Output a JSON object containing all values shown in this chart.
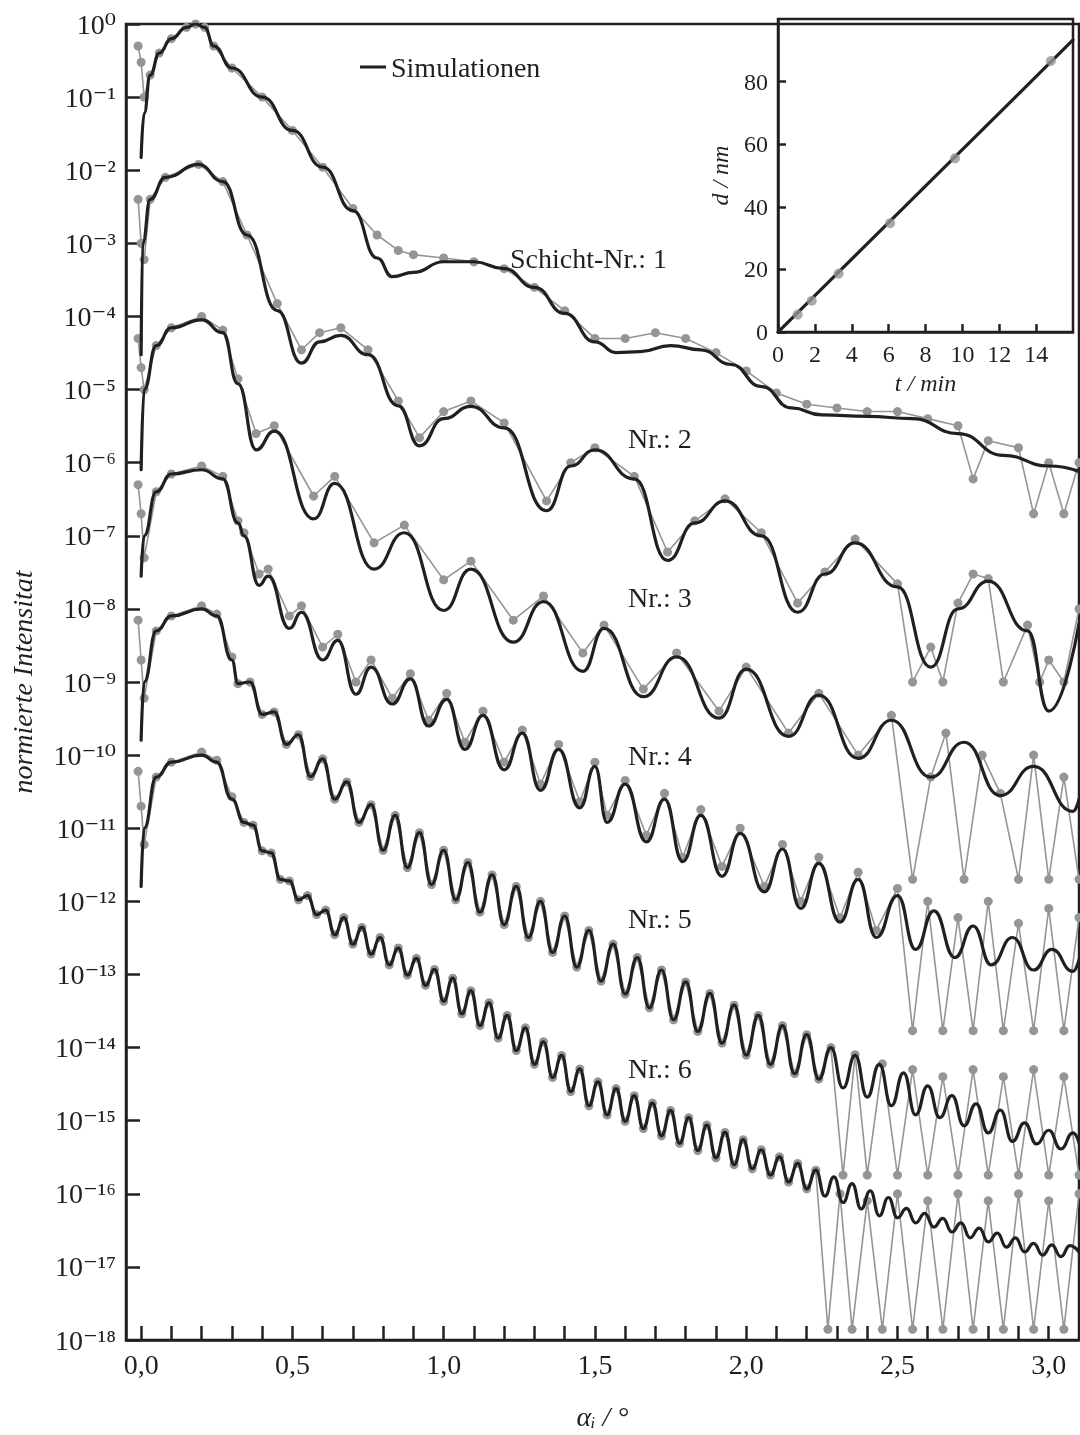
{
  "chart_data": [
    {
      "type": "line",
      "xlabel": "αᵢ / °",
      "ylabel": "normierte Intensitat",
      "log": "y",
      "legend": "top",
      "xlim": [
        -0.05,
        3.1
      ],
      "ylim": [
        1e-18,
        1
      ],
      "xticks": [
        {
          "value": 0,
          "label": "0,0"
        },
        {
          "value": 0.1,
          "label": null
        },
        {
          "value": 0.2,
          "label": null
        },
        {
          "value": 0.3,
          "label": null
        },
        {
          "value": 0.4,
          "label": null
        },
        {
          "value": 0.5,
          "label": "0,5"
        },
        {
          "value": 0.6,
          "label": null
        },
        {
          "value": 0.7,
          "label": null
        },
        {
          "value": 0.8,
          "label": null
        },
        {
          "value": 0.9,
          "label": null
        },
        {
          "value": 1.0,
          "label": "1,0"
        },
        {
          "value": 1.1,
          "label": null
        },
        {
          "value": 1.2,
          "label": null
        },
        {
          "value": 1.3,
          "label": null
        },
        {
          "value": 1.4,
          "label": null
        },
        {
          "value": 1.5,
          "label": "1,5"
        },
        {
          "value": 1.6,
          "label": null
        },
        {
          "value": 1.7,
          "label": null
        },
        {
          "value": 1.8,
          "label": null
        },
        {
          "value": 1.9,
          "label": null
        },
        {
          "value": 2.0,
          "label": "2,0"
        },
        {
          "value": 2.1,
          "label": null
        },
        {
          "value": 2.2,
          "label": null
        },
        {
          "value": 2.3,
          "label": null
        },
        {
          "value": 2.4,
          "label": null
        },
        {
          "value": 2.5,
          "label": "2,5"
        },
        {
          "value": 2.6,
          "label": null
        },
        {
          "value": 2.7,
          "label": null
        },
        {
          "value": 2.8,
          "label": null
        },
        {
          "value": 2.9,
          "label": null
        },
        {
          "value": 3.0,
          "label": "3,0"
        }
      ],
      "yticks": [
        {
          "value": 1,
          "label": "10⁰"
        },
        {
          "value": 0.1,
          "label": "10⁻¹"
        },
        {
          "value": 0.01,
          "label": "10⁻²"
        },
        {
          "value": 0.001,
          "label": "10⁻³"
        },
        {
          "value": 0.0001,
          "label": "10⁻⁴"
        },
        {
          "value": 1e-05,
          "label": "10⁻⁵"
        },
        {
          "value": 1e-06,
          "label": "10⁻⁶"
        },
        {
          "value": 1e-07,
          "label": "10⁻⁷"
        },
        {
          "value": 1e-08,
          "label": "10⁻⁸"
        },
        {
          "value": 1e-09,
          "label": "10⁻⁹"
        },
        {
          "value": 1e-10,
          "label": "10⁻¹⁰"
        },
        {
          "value": 1e-11,
          "label": "10⁻¹¹"
        },
        {
          "value": 1e-12,
          "label": "10⁻¹²"
        },
        {
          "value": 1e-13,
          "label": "10⁻¹³"
        },
        {
          "value": 1e-14,
          "label": "10⁻¹⁴"
        },
        {
          "value": 1e-15,
          "label": "10⁻¹⁵"
        },
        {
          "value": 1e-16,
          "label": "10⁻¹⁶"
        },
        {
          "value": 1e-17,
          "label": "10⁻¹⁷"
        },
        {
          "value": 1e-18,
          "label": "10⁻¹⁸"
        }
      ],
      "annotations": [
        "Schicht-Nr.: 1",
        "Nr.: 2",
        "Nr.: 3",
        "Nr.: 4",
        "Nr.: 5",
        "Nr.: 6"
      ],
      "series": [
        {
          "color": "#939598",
          "marker": "circle",
          "x": [
            -0.01,
            0,
            0.01,
            0.03,
            0.06,
            0.1,
            0.15,
            0.18,
            0.21,
            0.24,
            0.3,
            0.4,
            0.5,
            0.6,
            0.7,
            0.78,
            0.85,
            0.9,
            1.0,
            1.1,
            1.2,
            1.3,
            1.4,
            1.5,
            1.6,
            1.7,
            1.8,
            1.9,
            2.0,
            2.1,
            2.2,
            2.3,
            2.4,
            2.5,
            2.6,
            2.7,
            2.75,
            2.8,
            2.9,
            2.95,
            3.0,
            3.05,
            3.1
          ],
          "values": [
            0.5,
            0.3,
            0.1,
            0.2,
            0.4,
            0.63,
            0.9,
            1,
            0.9,
            0.5,
            0.25,
            0.1,
            0.035,
            0.011,
            0.003,
            0.0013,
            0.0008,
            0.0007,
            0.00063,
            0.00056,
            0.00045,
            0.00025,
            0.00012,
            5e-05,
            5e-05,
            6e-05,
            5e-05,
            3.2e-05,
            1.8e-05,
            9e-06,
            6.3e-06,
            5.6e-06,
            5e-06,
            5e-06,
            4e-06,
            3.2e-06,
            6e-07,
            2e-06,
            1.6e-06,
            2e-07,
            1e-06,
            2e-07,
            1e-06
          ]
        },
        {
          "color": "#939598",
          "marker": "circle",
          "x": [
            -0.01,
            0,
            0.01,
            0.03,
            0.08,
            0.19,
            0.27,
            0.35,
            0.45,
            0.53,
            0.59,
            0.66,
            0.75,
            0.85,
            0.92,
            1.0,
            1.09,
            1.2,
            1.34,
            1.42,
            1.5,
            1.63,
            1.74,
            1.83,
            1.93,
            2.05,
            2.17,
            2.26,
            2.36,
            2.5,
            2.55,
            2.61,
            2.65,
            2.7,
            2.75,
            2.8,
            2.85,
            2.93,
            2.97,
            3.0,
            3.05,
            3.1
          ],
          "values": [
            0.004,
            0.001,
            0.0006,
            0.004,
            0.008,
            0.012,
            0.007,
            0.0013,
            0.00015,
            3.5e-05,
            6e-05,
            7e-05,
            3.5e-05,
            7e-06,
            2.2e-06,
            5e-06,
            7e-06,
            3.5e-06,
            3e-07,
            1e-06,
            1.6e-06,
            6.5e-07,
            6e-08,
            1.6e-07,
            3.2e-07,
            1.1e-07,
            1.2e-08,
            3.2e-08,
            9e-08,
            2.2e-08,
            1e-09,
            3e-09,
            1e-09,
            1.2e-08,
            3e-08,
            2.6e-08,
            1e-09,
            6e-09,
            1e-09,
            2e-09,
            1e-09,
            1e-08
          ]
        },
        {
          "color": "#939598",
          "marker": "circle",
          "x": [
            -0.01,
            0,
            0.01,
            0.05,
            0.1,
            0.2,
            0.27,
            0.32,
            0.38,
            0.44,
            0.57,
            0.64,
            0.77,
            0.87,
            1.0,
            1.09,
            1.23,
            1.33,
            1.46,
            1.53,
            1.66,
            1.77,
            1.91,
            2.0,
            2.14,
            2.24,
            2.37,
            2.48,
            2.55,
            2.61,
            2.66,
            2.72,
            2.78,
            2.84,
            2.9,
            2.95,
            3.0,
            3.05,
            3.1
          ],
          "values": [
            5e-05,
            2e-05,
            1e-05,
            4e-05,
            7e-05,
            0.0001,
            6.5e-05,
            1.4e-05,
            2.5e-06,
            3.2e-06,
            3.5e-07,
            6.5e-07,
            8e-08,
            1.4e-07,
            2.5e-08,
            4.5e-08,
            7e-09,
            1.5e-08,
            2.5e-09,
            6e-09,
            8e-10,
            2.5e-09,
            4e-10,
            1.6e-09,
            2e-10,
            7e-10,
            1e-10,
            3.5e-10,
            2e-12,
            5e-11,
            2e-10,
            2e-12,
            1e-10,
            3e-11,
            2e-12,
            1e-10,
            2e-12,
            5e-11,
            2e-12
          ]
        },
        {
          "color": "#939598",
          "marker": "circle",
          "x": [
            -0.01,
            0,
            0.01,
            0.05,
            0.1,
            0.2,
            0.27,
            0.32,
            0.34,
            0.39,
            0.42,
            0.49,
            0.53,
            0.6,
            0.65,
            0.71,
            0.76,
            0.83,
            0.89,
            0.95,
            1.01,
            1.07,
            1.13,
            1.2,
            1.26,
            1.32,
            1.38,
            1.45,
            1.5,
            1.54,
            1.6,
            1.67,
            1.73,
            1.79,
            1.85,
            1.92,
            1.98,
            2.06,
            2.12,
            2.18,
            2.24,
            2.31,
            2.37,
            2.43,
            2.5,
            2.55,
            2.6,
            2.65,
            2.7,
            2.75,
            2.8,
            2.85,
            2.9,
            2.95,
            3.0,
            3.05,
            3.1
          ],
          "values": [
            5e-07,
            2e-07,
            5e-08,
            4e-07,
            7e-07,
            9e-07,
            6.5e-07,
            1.6e-07,
            1.1e-07,
            3e-08,
            3.5e-08,
            8e-09,
            1.1e-08,
            3e-09,
            4.5e-09,
            1e-09,
            2e-09,
            6e-10,
            1.3e-09,
            3e-10,
            7e-10,
            1.5e-10,
            4e-10,
            8e-11,
            2.2e-10,
            4e-11,
            1.4e-10,
            2.3e-11,
            8e-11,
            1.5e-11,
            4.5e-11,
            8e-12,
            3e-11,
            4e-12,
            1.8e-11,
            3e-12,
            1e-11,
            1.6e-12,
            6e-12,
            1e-12,
            4e-12,
            6e-13,
            2.5e-12,
            4e-13,
            1.5e-12,
            1.7e-14,
            1e-12,
            1.7e-14,
            6e-13,
            1.7e-14,
            1e-12,
            1.7e-14,
            5e-13,
            1.7e-14,
            8e-13,
            1.7e-14,
            6e-13
          ]
        },
        {
          "color": "#939598",
          "marker": "circle",
          "x": [
            -0.01,
            0,
            0.01,
            0.05,
            0.1,
            0.2,
            0.25,
            0.3,
            0.32,
            0.36,
            0.4,
            0.44,
            0.48,
            0.52,
            0.56,
            0.6,
            0.64,
            0.68,
            0.72,
            0.76,
            0.8,
            0.84,
            0.88,
            0.92,
            0.96,
            1.0,
            1.04,
            1.08,
            1.12,
            1.16,
            1.2,
            1.24,
            1.28,
            1.32,
            1.36,
            1.4,
            1.44,
            1.48,
            1.52,
            1.56,
            1.6,
            1.64,
            1.68,
            1.72,
            1.76,
            1.8,
            1.84,
            1.88,
            1.92,
            1.96,
            2.0,
            2.04,
            2.08,
            2.12,
            2.16,
            2.2,
            2.24,
            2.28,
            2.32,
            2.36,
            2.4,
            2.45,
            2.5,
            2.55,
            2.6,
            2.65,
            2.7,
            2.75,
            2.8,
            2.85,
            2.9,
            2.95,
            3.0,
            3.05,
            3.1
          ],
          "values": [
            7e-09,
            2e-09,
            6e-10,
            5e-09,
            8e-09,
            1.1e-08,
            8.5e-09,
            2.2e-09,
            9.5e-10,
            1e-09,
            3.6e-10,
            3.9e-10,
            1.4e-10,
            1.9e-10,
            5.1e-11,
            8.9e-11,
            2.5e-11,
            4.3e-11,
            1.2e-11,
            2.1e-11,
            5e-12,
            1.5e-11,
            2.9e-12,
            8.7e-12,
            1.7e-12,
            5e-12,
            1.05e-12,
            3.4e-12,
            7.1e-13,
            2.3e-12,
            4.8e-13,
            1.6e-12,
            3.2e-13,
            1e-12,
            2e-13,
            6.3e-13,
            1.26e-13,
            4e-13,
            8.1e-14,
            2.6e-13,
            5.4e-14,
            1.7e-13,
            3.5e-14,
            1.15e-13,
            2.4e-14,
            7.9e-14,
            1.66e-14,
            5.5e-14,
            1.15e-14,
            3.8e-14,
            7.9e-15,
            2.75e-14,
            5.9e-15,
            2e-14,
            4.4e-15,
            1.5e-14,
            3.7e-15,
            1e-14,
            1.8e-16,
            8e-15,
            1.8e-16,
            6e-15,
            1.8e-16,
            5e-15,
            1.8e-16,
            4e-15,
            1.8e-16,
            5e-15,
            1.8e-16,
            4e-15,
            1.8e-16,
            5e-15,
            1.8e-16,
            4e-15,
            1.8e-16
          ]
        },
        {
          "color": "#939598",
          "marker": "circle",
          "x": [
            -0.01,
            0,
            0.01,
            0.05,
            0.1,
            0.2,
            0.25,
            0.3,
            0.34,
            0.37,
            0.4,
            0.43,
            0.46,
            0.49,
            0.52,
            0.55,
            0.58,
            0.61,
            0.64,
            0.67,
            0.7,
            0.73,
            0.76,
            0.79,
            0.82,
            0.85,
            0.88,
            0.91,
            0.94,
            0.97,
            1.0,
            1.03,
            1.06,
            1.09,
            1.12,
            1.15,
            1.18,
            1.21,
            1.24,
            1.27,
            1.3,
            1.33,
            1.36,
            1.39,
            1.42,
            1.45,
            1.48,
            1.51,
            1.54,
            1.57,
            1.6,
            1.63,
            1.66,
            1.69,
            1.72,
            1.75,
            1.78,
            1.81,
            1.84,
            1.87,
            1.9,
            1.93,
            1.96,
            1.99,
            2.02,
            2.05,
            2.08,
            2.11,
            2.14,
            2.17,
            2.2,
            2.23,
            2.27,
            2.31,
            2.35,
            2.4,
            2.45,
            2.5,
            2.55,
            2.6,
            2.65,
            2.7,
            2.75,
            2.8,
            2.85,
            2.9,
            2.95,
            3.0,
            3.05,
            3.1
          ],
          "values": [
            6e-11,
            2e-11,
            6e-12,
            5e-11,
            8e-11,
            1.1e-10,
            8.5e-11,
            2.7e-11,
            1.2e-11,
            1.1e-11,
            4.9e-12,
            4.6e-12,
            2e-12,
            1.9e-12,
            1.05e-12,
            1.2e-12,
            6.6e-13,
            7.6e-13,
            3.5e-13,
            6e-13,
            2.6e-13,
            4.4e-13,
            1.9e-13,
            3.2e-13,
            1.35e-13,
            2.3e-13,
            9.8e-14,
            1.66e-13,
            7.1e-14,
            1.17e-13,
            4.3e-14,
            8.9e-14,
            2.9e-14,
            6e-14,
            2e-14,
            4.1e-14,
            1.35e-14,
            2.75e-14,
            9.1e-15,
            1.86e-14,
            5.9e-15,
            1.2e-14,
            3.9e-15,
            7.8e-15,
            2.5e-15,
            5.1e-15,
            1.6e-15,
            3.4e-15,
            1.2e-15,
            2.75e-15,
            9.8e-16,
            2.2e-15,
            7.8e-16,
            1.74e-15,
            6.2e-16,
            1.38e-15,
            4.9e-16,
            1.1e-15,
            3.9e-16,
            8.7e-16,
            3.1e-16,
            6.9e-16,
            2.5e-16,
            5.5e-16,
            2.2e-16,
            4e-16,
            1.8e-16,
            3.2e-16,
            1.45e-16,
            2.6e-16,
            1.17e-16,
            2.1e-16,
            1.4e-18,
            1e-16,
            1.4e-18,
            8e-17,
            1.4e-18,
            1e-16,
            1.4e-18,
            8e-17,
            1.4e-18,
            1e-16,
            1.4e-18,
            8e-17,
            1.4e-18,
            1e-16,
            1.4e-18,
            8e-17,
            1.4e-18,
            1e-16
          ]
        },
        {
          "name": "Simulationen",
          "color": "#231f20",
          "marker": "none",
          "x": [
            0,
            0.01,
            0.03,
            0.06,
            0.1,
            0.15,
            0.18,
            0.21,
            0.24,
            0.3,
            0.4,
            0.5,
            0.6,
            0.7,
            0.78,
            0.83,
            0.9,
            1.0,
            1.1,
            1.2,
            1.3,
            1.4,
            1.5,
            1.57,
            1.65,
            1.75,
            1.85,
            1.95,
            2.05,
            2.15,
            2.25,
            2.4,
            2.55,
            2.7,
            2.85,
            3.0,
            3.1
          ],
          "values": [
            0.015,
            0.06,
            0.2,
            0.4,
            0.63,
            0.9,
            1,
            0.9,
            0.5,
            0.25,
            0.1,
            0.035,
            0.011,
            0.0028,
            0.00063,
            0.00035,
            0.0004,
            0.00056,
            0.00056,
            0.00045,
            0.00025,
            0.00011,
            4.5e-05,
            3.2e-05,
            3.3e-05,
            4e-05,
            3.5e-05,
            2.2e-05,
            1.1e-05,
            5.6e-06,
            4.5e-06,
            4.3e-06,
            4e-06,
            2.5e-06,
            1.26e-06,
            9e-07,
            7.6e-07
          ]
        },
        {
          "color": "#231f20",
          "marker": "none",
          "x": [
            0,
            0.005,
            0.03,
            0.08,
            0.19,
            0.27,
            0.35,
            0.45,
            0.53,
            0.59,
            0.66,
            0.75,
            0.85,
            0.92,
            1.0,
            1.09,
            1.2,
            1.34,
            1.42,
            1.5,
            1.63,
            1.74,
            1.83,
            1.93,
            2.05,
            2.17,
            2.26,
            2.36,
            2.5,
            2.61,
            2.7,
            2.8,
            2.93,
            3.0,
            3.1
          ],
          "values": [
            3e-05,
            0.001,
            0.004,
            0.008,
            0.012,
            0.007,
            0.0013,
            0.00012,
            2.3e-05,
            4.5e-05,
            5.5e-05,
            3e-05,
            6e-06,
            1.7e-06,
            4e-06,
            5.9e-06,
            3e-06,
            2.2e-07,
            9e-07,
            1.5e-06,
            6e-07,
            4.6e-08,
            1.5e-07,
            3e-07,
            1e-07,
            9e-09,
            3e-08,
            8e-08,
            2e-08,
            1.6e-09,
            1e-08,
            2.4e-08,
            5e-09,
            4e-10,
            6.3e-09
          ]
        },
        {
          "color": "#231f20",
          "marker": "none",
          "x": [
            0,
            0.01,
            0.05,
            0.1,
            0.2,
            0.27,
            0.32,
            0.38,
            0.44,
            0.57,
            0.64,
            0.77,
            0.87,
            1.0,
            1.09,
            1.23,
            1.33,
            1.46,
            1.53,
            1.66,
            1.77,
            1.91,
            2.0,
            2.14,
            2.24,
            2.37,
            2.48,
            2.61,
            2.72,
            2.84,
            2.95,
            3.08,
            3.1
          ],
          "values": [
            8e-07,
            1e-05,
            4e-05,
            7e-05,
            9e-05,
            6e-05,
            1.2e-05,
            1.5e-06,
            2.7e-06,
            1.7e-07,
            5.2e-07,
            3.5e-08,
            1.1e-07,
            9.5e-09,
            3.5e-08,
            3.5e-09,
            1.26e-08,
            1.4e-09,
            5.4e-09,
            6.3e-10,
            2.2e-09,
            3.2e-10,
            1.5e-09,
            1.8e-10,
            6.6e-10,
            9e-11,
            3e-10,
            5e-11,
            1.5e-10,
            2.8e-11,
            7e-11,
            1.7e-11,
            2.5e-11
          ]
        },
        {
          "color": "#231f20",
          "marker": "none",
          "x": [
            0,
            0.01,
            0.05,
            0.1,
            0.2,
            0.27,
            0.32,
            0.34,
            0.39,
            0.42,
            0.49,
            0.53,
            0.6,
            0.65,
            0.71,
            0.76,
            0.83,
            0.89,
            0.95,
            1.01,
            1.07,
            1.13,
            1.2,
            1.26,
            1.32,
            1.38,
            1.45,
            1.5,
            1.54,
            1.6,
            1.67,
            1.73,
            1.79,
            1.85,
            1.92,
            1.98,
            2.06,
            2.12,
            2.18,
            2.24,
            2.31,
            2.37,
            2.43,
            2.5,
            2.56,
            2.62,
            2.69,
            2.75,
            2.81,
            2.88,
            2.95,
            3.01,
            3.08,
            3.1
          ],
          "values": [
            2.8e-08,
            1e-07,
            4e-07,
            7e-07,
            8e-07,
            6e-07,
            1.5e-07,
            1e-07,
            2.1e-08,
            2.8e-08,
            5.4e-09,
            9e-09,
            2e-09,
            3.7e-09,
            6.8e-10,
            1.6e-09,
            5e-10,
            1.1e-09,
            2.5e-10,
            5.8e-10,
            1.2e-10,
            3.5e-10,
            6.3e-11,
            2e-10,
            3.3e-11,
            1.2e-10,
            1.9e-11,
            7e-11,
            1.2e-11,
            4e-11,
            6.5e-12,
            2.5e-11,
            3.5e-12,
            1.5e-11,
            2.2e-12,
            8.5e-12,
            1.35e-12,
            5.2e-12,
            8e-13,
            3.3e-12,
            5.2e-13,
            2e-12,
            3.2e-13,
            1.2e-12,
            2.2e-13,
            7.4e-13,
            1.7e-13,
            4.6e-13,
            1.35e-13,
            3.2e-13,
            1.15e-13,
            2.2e-13,
            1.1e-13,
            1.6e-13
          ]
        },
        {
          "color": "#231f20",
          "marker": "none",
          "x": [
            0,
            0.01,
            0.05,
            0.1,
            0.2,
            0.25,
            0.3,
            0.32,
            0.36,
            0.4,
            0.44,
            0.48,
            0.52,
            0.56,
            0.6,
            0.64,
            0.68,
            0.72,
            0.76,
            0.8,
            0.84,
            0.88,
            0.92,
            0.96,
            1.0,
            1.04,
            1.08,
            1.12,
            1.16,
            1.2,
            1.24,
            1.28,
            1.32,
            1.36,
            1.4,
            1.44,
            1.48,
            1.52,
            1.56,
            1.6,
            1.64,
            1.68,
            1.72,
            1.76,
            1.8,
            1.84,
            1.88,
            1.92,
            1.96,
            2.0,
            2.04,
            2.08,
            2.12,
            2.16,
            2.2,
            2.24,
            2.28,
            2.32,
            2.36,
            2.4,
            2.44,
            2.48,
            2.52,
            2.56,
            2.6,
            2.64,
            2.68,
            2.72,
            2.76,
            2.8,
            2.84,
            2.88,
            2.92,
            2.96,
            3.0,
            3.04,
            3.08,
            3.1
          ],
          "values": [
            1.6e-10,
            1e-09,
            5e-09,
            8e-09,
            1e-08,
            8e-09,
            2e-09,
            9.5e-10,
            1e-09,
            3.6e-10,
            3.9e-10,
            1.4e-10,
            1.9e-10,
            5.1e-11,
            8.9e-11,
            2.5e-11,
            4.3e-11,
            1.2e-11,
            2.1e-11,
            5e-12,
            1.5e-11,
            2.9e-12,
            8.7e-12,
            1.7e-12,
            5e-12,
            1.05e-12,
            3.4e-12,
            7.1e-13,
            2.3e-12,
            4.8e-13,
            1.6e-12,
            3.2e-13,
            1e-12,
            2e-13,
            6.3e-13,
            1.26e-13,
            4e-13,
            8.1e-14,
            2.6e-13,
            5.4e-14,
            1.7e-13,
            3.5e-14,
            1.15e-13,
            2.4e-14,
            7.9e-14,
            1.66e-14,
            5.5e-14,
            1.15e-14,
            3.8e-14,
            7.9e-15,
            2.75e-14,
            5.9e-15,
            2e-14,
            4.4e-15,
            1.5e-14,
            3.7e-15,
            1e-14,
            2.8e-15,
            7.8e-15,
            2.1e-15,
            5.9e-15,
            1.6e-15,
            4.5e-15,
            1.2e-15,
            3e-15,
            1.1e-15,
            2.2e-15,
            8.5e-16,
            1.7e-15,
            6.8e-16,
            1.4e-15,
            5.2e-16,
            9.3e-16,
            4.8e-16,
            7.4e-16,
            4.1e-16,
            6.8e-16,
            5e-16
          ]
        },
        {
          "color": "#231f20",
          "marker": "none",
          "x": [
            0,
            0.01,
            0.05,
            0.1,
            0.2,
            0.25,
            0.3,
            0.34,
            0.37,
            0.4,
            0.43,
            0.46,
            0.49,
            0.52,
            0.55,
            0.58,
            0.61,
            0.64,
            0.67,
            0.7,
            0.73,
            0.76,
            0.79,
            0.82,
            0.85,
            0.88,
            0.91,
            0.94,
            0.97,
            1.0,
            1.03,
            1.06,
            1.09,
            1.12,
            1.15,
            1.18,
            1.21,
            1.24,
            1.27,
            1.3,
            1.33,
            1.36,
            1.39,
            1.42,
            1.45,
            1.48,
            1.51,
            1.54,
            1.57,
            1.6,
            1.63,
            1.66,
            1.69,
            1.72,
            1.75,
            1.78,
            1.81,
            1.84,
            1.87,
            1.9,
            1.93,
            1.96,
            1.99,
            2.02,
            2.05,
            2.08,
            2.11,
            2.14,
            2.17,
            2.2,
            2.23,
            2.26,
            2.29,
            2.32,
            2.35,
            2.38,
            2.41,
            2.44,
            2.47,
            2.5,
            2.53,
            2.56,
            2.59,
            2.62,
            2.65,
            2.68,
            2.71,
            2.74,
            2.77,
            2.8,
            2.83,
            2.86,
            2.89,
            2.92,
            2.95,
            2.98,
            3.01,
            3.04,
            3.07,
            3.1
          ],
          "values": [
            1.6e-12,
            1e-11,
            5e-11,
            8e-11,
            1e-10,
            8e-11,
            2.5e-11,
            1.2e-11,
            1.1e-11,
            4.9e-12,
            4.6e-12,
            2e-12,
            1.9e-12,
            1.05e-12,
            1.2e-12,
            6.6e-13,
            7.6e-13,
            3.5e-13,
            6e-13,
            2.6e-13,
            4.4e-13,
            1.9e-13,
            3.2e-13,
            1.35e-13,
            2.3e-13,
            9.8e-14,
            1.66e-13,
            7.1e-14,
            1.17e-13,
            4.3e-14,
            8.9e-14,
            2.9e-14,
            6e-14,
            2e-14,
            4.1e-14,
            1.35e-14,
            2.75e-14,
            9.1e-15,
            1.86e-14,
            5.9e-15,
            1.2e-14,
            3.9e-15,
            7.8e-15,
            2.5e-15,
            5.1e-15,
            1.6e-15,
            3.4e-15,
            1.2e-15,
            2.75e-15,
            9.8e-16,
            2.2e-15,
            7.8e-16,
            1.74e-15,
            6.2e-16,
            1.38e-15,
            4.9e-16,
            1.1e-15,
            3.9e-16,
            8.7e-16,
            3.1e-16,
            6.9e-16,
            2.5e-16,
            5.5e-16,
            2.2e-16,
            4e-16,
            1.8e-16,
            3.2e-16,
            1.45e-16,
            2.6e-16,
            1.17e-16,
            2.1e-16,
            9.3e-17,
            1.7e-16,
            7.6e-17,
            1.38e-16,
            6.2e-17,
            1.1e-16,
            5e-17,
            8.9e-17,
            4.7e-17,
            6.3e-17,
            4e-17,
            5.4e-17,
            3.5e-17,
            4.6e-17,
            3e-17,
            4e-17,
            2.5e-17,
            3.4e-17,
            2.2e-17,
            2.9e-17,
            1.86e-17,
            2.5e-17,
            1.6e-17,
            2.1e-17,
            1.45e-17,
            2e-17,
            1.38e-17,
            1.95e-17,
            1.6e-17
          ]
        }
      ]
    },
    {
      "type": "line",
      "xlabel": "t / min",
      "ylabel": "d / nm",
      "xlim": [
        0,
        16
      ],
      "ylim": [
        0,
        100
      ],
      "xticks": [
        0,
        2,
        4,
        6,
        8,
        10,
        12,
        14
      ],
      "yticks": [
        0,
        20,
        40,
        60,
        80
      ],
      "series": [
        {
          "color": "#231f20",
          "marker": "none",
          "x": [
            0,
            16
          ],
          "values": [
            0,
            93.3
          ]
        },
        {
          "type": "scatter",
          "color": "#939598",
          "marker": "circle",
          "x": [
            1.07,
            1.83,
            3.29,
            6.08,
            9.6,
            14.8
          ],
          "values": [
            5.6,
            10,
            18.7,
            34.8,
            55.5,
            86.6
          ]
        }
      ]
    }
  ]
}
